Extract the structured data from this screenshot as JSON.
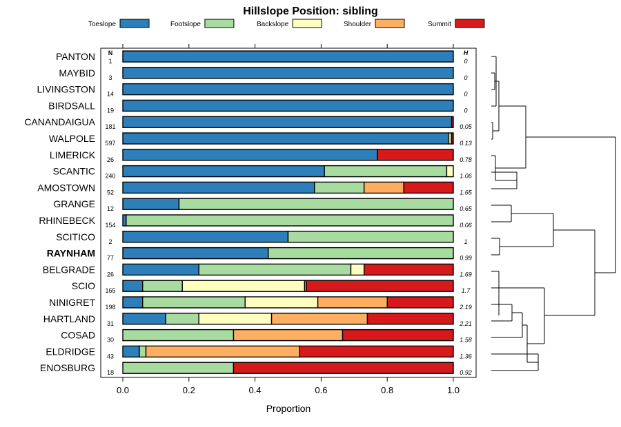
{
  "chart_data": {
    "type": "bar",
    "stacked": true,
    "orientation": "horizontal",
    "title": "Hillslope Position: sibling",
    "xlabel": "Proportion",
    "xlim": [
      0,
      1
    ],
    "xticks": [
      "0.0",
      "0.2",
      "0.4",
      "0.6",
      "0.8",
      "1.0"
    ],
    "xtick_values": [
      0,
      0.2,
      0.4,
      0.6,
      0.8,
      1.0
    ],
    "n_header": "N",
    "h_header": "H",
    "highlight": "RAYNHAM",
    "legend_position": "top",
    "series": [
      {
        "name": "Toeslope",
        "color": "#2c7fb8"
      },
      {
        "name": "Footslope",
        "color": "#a8dba0"
      },
      {
        "name": "Backslope",
        "color": "#ffffc0"
      },
      {
        "name": "Shoulder",
        "color": "#fdae61"
      },
      {
        "name": "Summit",
        "color": "#d7191c"
      }
    ],
    "rows": [
      {
        "label": "PANTON",
        "n": "1",
        "h": "0",
        "values": [
          1,
          0,
          0,
          0,
          0
        ]
      },
      {
        "label": "MAYBID",
        "n": "3",
        "h": "0",
        "values": [
          1,
          0,
          0,
          0,
          0
        ]
      },
      {
        "label": "LIVINGSTON",
        "n": "14",
        "h": "0",
        "values": [
          1,
          0,
          0,
          0,
          0
        ]
      },
      {
        "label": "BIRDSALL",
        "n": "19",
        "h": "0",
        "values": [
          1,
          0,
          0,
          0,
          0
        ]
      },
      {
        "label": "CANANDAIGUA",
        "n": "181",
        "h": "0.05",
        "values": [
          0.995,
          0,
          0,
          0,
          0.005
        ]
      },
      {
        "label": "WALPOLE",
        "n": "597",
        "h": "0.13",
        "values": [
          0.985,
          0.01,
          0,
          0,
          0.005
        ]
      },
      {
        "label": "LIMERICK",
        "n": "26",
        "h": "0.78",
        "values": [
          0.77,
          0,
          0,
          0,
          0.23
        ]
      },
      {
        "label": "SCANTIC",
        "n": "240",
        "h": "1.06",
        "values": [
          0.61,
          0.37,
          0.02,
          0,
          0
        ]
      },
      {
        "label": "AMOSTOWN",
        "n": "52",
        "h": "1.65",
        "values": [
          0.58,
          0.15,
          0,
          0.12,
          0.15
        ]
      },
      {
        "label": "GRANGE",
        "n": "12",
        "h": "0.65",
        "values": [
          0.17,
          0.83,
          0,
          0,
          0
        ]
      },
      {
        "label": "RHINEBECK",
        "n": "154",
        "h": "0.06",
        "values": [
          0.01,
          0.99,
          0,
          0,
          0
        ]
      },
      {
        "label": "SCITICO",
        "n": "2",
        "h": "1",
        "values": [
          0.5,
          0.5,
          0,
          0,
          0
        ]
      },
      {
        "label": "RAYNHAM",
        "n": "77",
        "h": "0.99",
        "values": [
          0.44,
          0.56,
          0,
          0,
          0
        ]
      },
      {
        "label": "BELGRADE",
        "n": "26",
        "h": "1.69",
        "values": [
          0.23,
          0.46,
          0.04,
          0,
          0.27
        ]
      },
      {
        "label": "SCIO",
        "n": "165",
        "h": "1.7",
        "values": [
          0.06,
          0.12,
          0.37,
          0.005,
          0.445
        ]
      },
      {
        "label": "NINIGRET",
        "n": "198",
        "h": "2.19",
        "values": [
          0.06,
          0.31,
          0.22,
          0.21,
          0.2
        ]
      },
      {
        "label": "HARTLAND",
        "n": "31",
        "h": "2.21",
        "values": [
          0.13,
          0.1,
          0.22,
          0.29,
          0.26
        ]
      },
      {
        "label": "COSAD",
        "n": "30",
        "h": "1.58",
        "values": [
          0,
          0.335,
          0,
          0.33,
          0.335
        ]
      },
      {
        "label": "ELDRIDGE",
        "n": "43",
        "h": "1.36",
        "values": [
          0.05,
          0.02,
          0,
          0.465,
          0.465
        ]
      },
      {
        "label": "ENOSBURG",
        "n": "18",
        "h": "0.92",
        "values": [
          0,
          0.335,
          0,
          0,
          0.665
        ]
      }
    ]
  }
}
